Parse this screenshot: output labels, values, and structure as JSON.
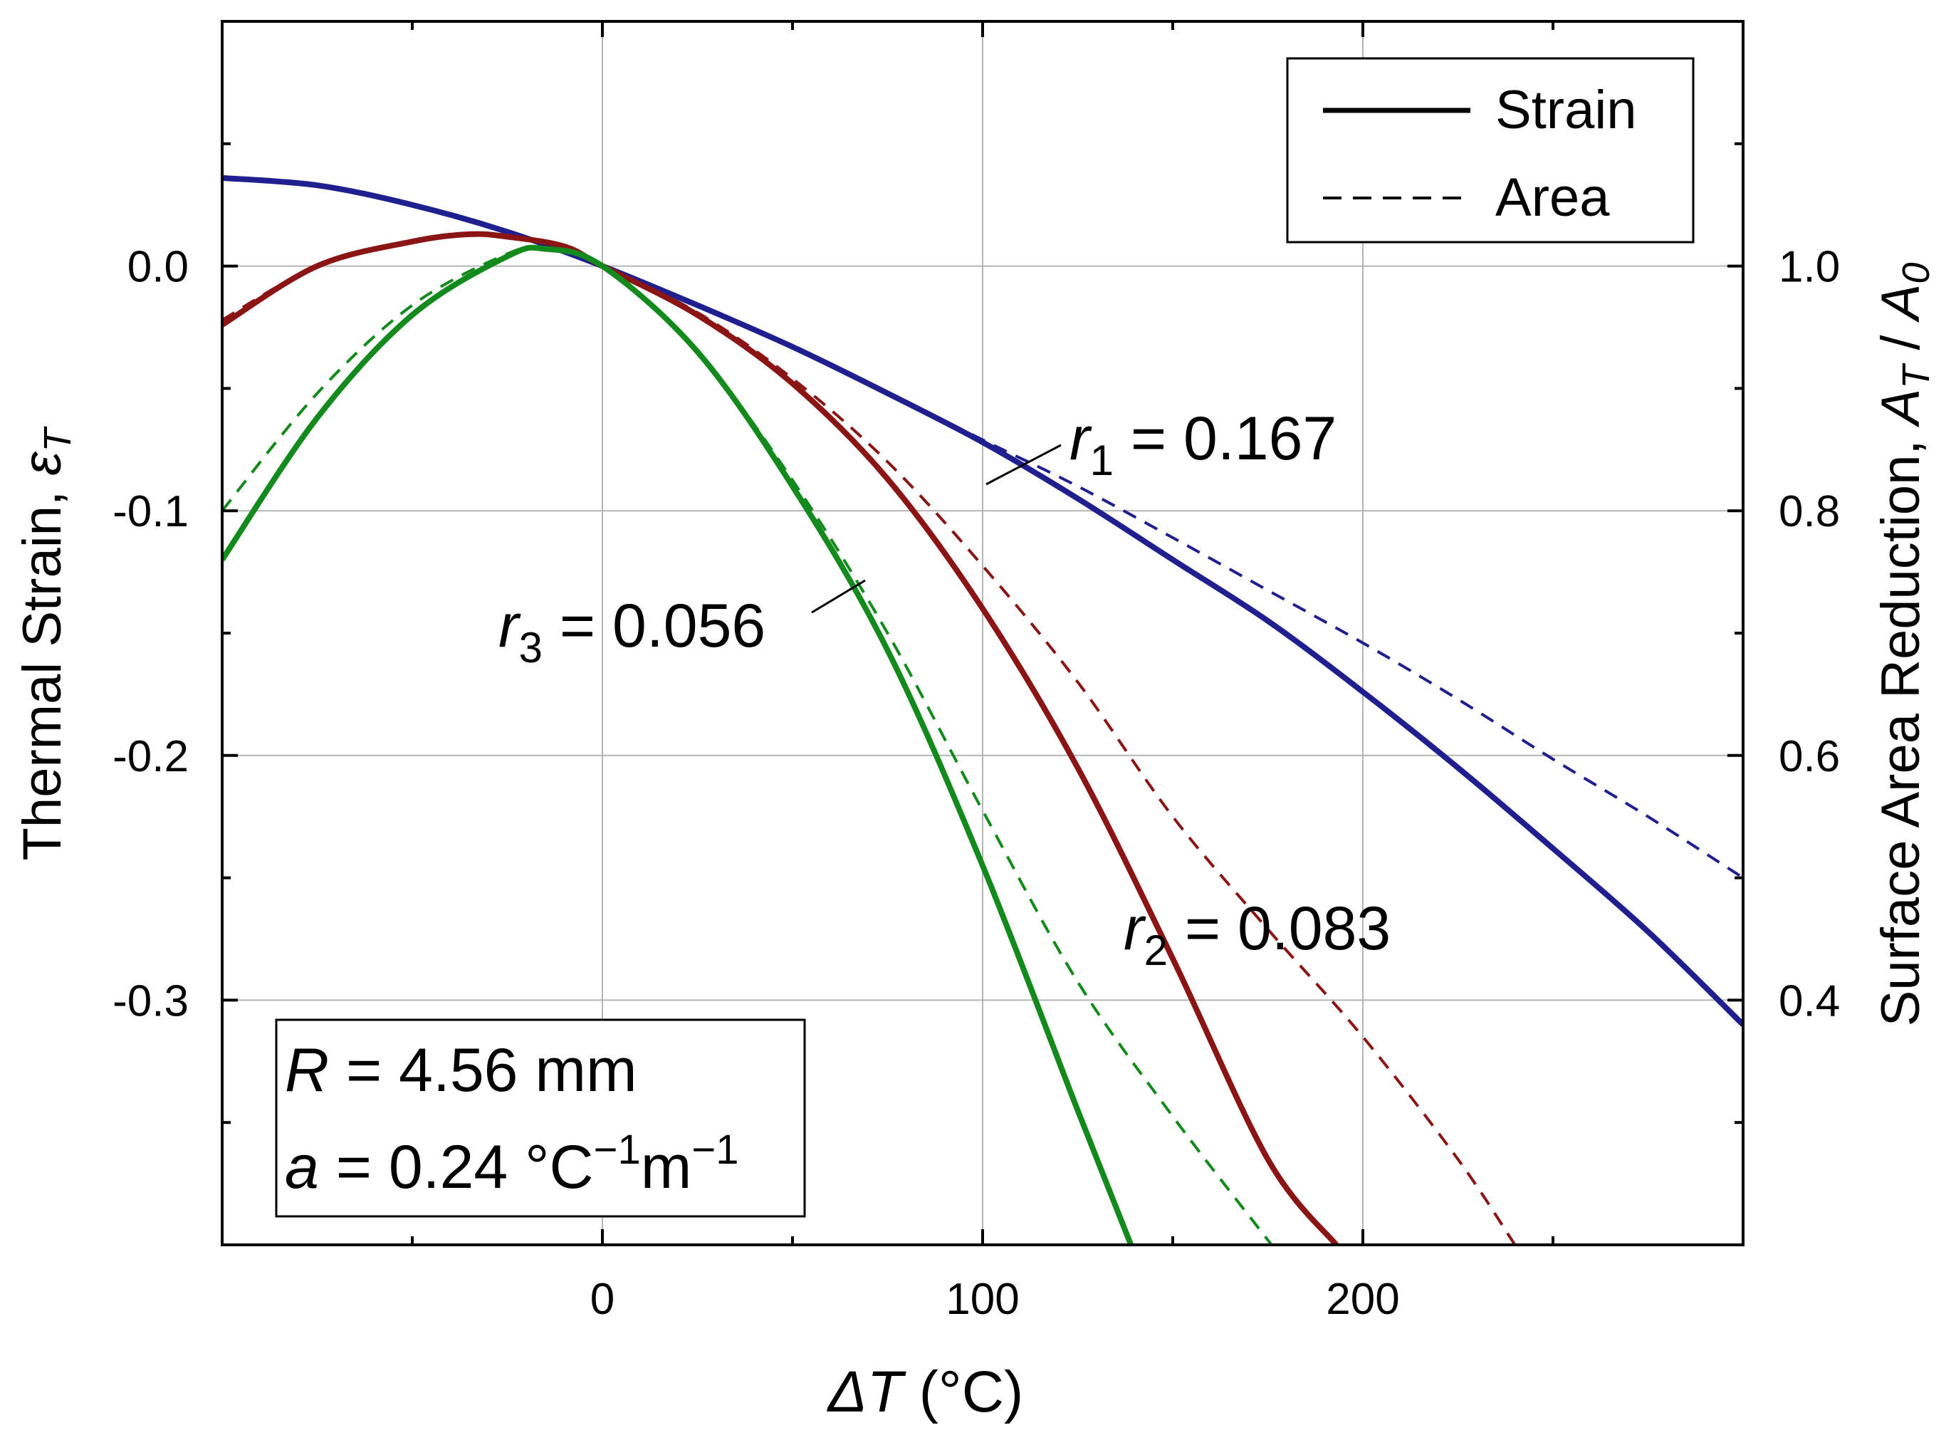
{
  "chart_data": {
    "type": "line",
    "xlabel_symbol": "ΔT",
    "xlabel_unit": " (°C)",
    "ylabel_left_text": "Thermal Strain, ",
    "ylabel_left_symbol": "ε",
    "ylabel_left_sub": "T",
    "ylabel_right_text": "Surface Area Reduction, ",
    "ylabel_right_A": "A",
    "ylabel_right_T": "T",
    "ylabel_right_slash": " / ",
    "ylabel_right_A0": "A",
    "ylabel_right_0": "0",
    "xlim": [
      -100,
      300
    ],
    "ylim_left": [
      -0.4,
      0.1
    ],
    "ylim_right": [
      0.2,
      1.2
    ],
    "x_ticks": [
      {
        "value": 0,
        "label": "0"
      },
      {
        "value": 100,
        "label": "100"
      },
      {
        "value": 200,
        "label": "200"
      }
    ],
    "y_ticks_left": [
      {
        "value": 0.0,
        "label": "0.0"
      },
      {
        "value": -0.1,
        "label": "-0.1"
      },
      {
        "value": -0.2,
        "label": "-0.2"
      },
      {
        "value": -0.3,
        "label": "-0.3"
      }
    ],
    "y_ticks_right": [
      {
        "value": 1.0,
        "label": "1.0"
      },
      {
        "value": 0.8,
        "label": "0.8"
      },
      {
        "value": 0.6,
        "label": "0.6"
      },
      {
        "value": 0.4,
        "label": "0.4"
      }
    ],
    "grid": true,
    "legend": {
      "position": "top-right",
      "entries": [
        {
          "label": "Strain",
          "style": "solid"
        },
        {
          "label": "Area",
          "style": "dashed"
        }
      ]
    },
    "series": [
      {
        "name": "r1 strain",
        "axis": "left",
        "style": "solid",
        "color": "#1f1f8f",
        "x": [
          -100,
          -75,
          -50,
          -25,
          0,
          25,
          50,
          75,
          100,
          125,
          150,
          175,
          200,
          225,
          250,
          275,
          300
        ],
        "y": [
          0.036,
          0.033,
          0.025,
          0.014,
          0.0,
          -0.016,
          -0.033,
          -0.052,
          -0.072,
          -0.095,
          -0.12,
          -0.145,
          -0.174,
          -0.205,
          -0.238,
          -0.272,
          -0.31
        ]
      },
      {
        "name": "r1 area",
        "axis": "right",
        "style": "dashed",
        "color": "#1f1f8f",
        "x": [
          -100,
          -75,
          -50,
          -25,
          0,
          25,
          50,
          75,
          100,
          125,
          150,
          175,
          200,
          225,
          250,
          275,
          300
        ],
        "y": [
          1.073,
          1.066,
          1.051,
          1.028,
          1.0,
          0.968,
          0.934,
          0.897,
          0.858,
          0.82,
          0.778,
          0.735,
          0.692,
          0.646,
          0.597,
          0.55,
          0.5
        ]
      },
      {
        "name": "r2 strain",
        "axis": "left",
        "style": "solid",
        "color": "#8b1414",
        "x": [
          -100,
          -75,
          -50,
          -35,
          -25,
          -10,
          0,
          25,
          50,
          75,
          100,
          125,
          150,
          175,
          193
        ],
        "y": [
          -0.024,
          0.0,
          0.01,
          0.013,
          0.012,
          0.008,
          0.0,
          -0.02,
          -0.048,
          -0.087,
          -0.14,
          -0.205,
          -0.283,
          -0.365,
          -0.4
        ]
      },
      {
        "name": "r2 area",
        "axis": "right",
        "style": "dashed",
        "color": "#8b1414",
        "x": [
          -100,
          -75,
          -50,
          -35,
          -25,
          -10,
          0,
          25,
          50,
          75,
          100,
          125,
          150,
          175,
          200,
          225,
          240
        ],
        "y": [
          0.956,
          1.0,
          1.02,
          1.026,
          1.024,
          1.016,
          1.0,
          0.962,
          0.908,
          0.84,
          0.755,
          0.66,
          0.55,
          0.458,
          0.37,
          0.27,
          0.2
        ]
      },
      {
        "name": "r3 strain",
        "axis": "left",
        "style": "solid",
        "color": "#128a1c",
        "x": [
          -100,
          -75,
          -50,
          -25,
          -15,
          0,
          25,
          50,
          75,
          100,
          125,
          139
        ],
        "y": [
          -0.12,
          -0.062,
          -0.02,
          0.004,
          0.007,
          0.0,
          -0.035,
          -0.09,
          -0.157,
          -0.245,
          -0.345,
          -0.4
        ]
      },
      {
        "name": "r3 area",
        "axis": "right",
        "style": "dashed",
        "color": "#128a1c",
        "x": [
          -100,
          -75,
          -50,
          -25,
          -15,
          0,
          25,
          50,
          75,
          100,
          125,
          150,
          176
        ],
        "y": [
          0.8,
          0.896,
          0.968,
          1.01,
          1.014,
          1.0,
          0.93,
          0.825,
          0.7,
          0.555,
          0.415,
          0.305,
          0.2
        ]
      }
    ],
    "annotations": {
      "r1": {
        "sym": "r",
        "sub": "1",
        "text": " = 0.167"
      },
      "r2": {
        "sym": "r",
        "sub": "2",
        "text": " = 0.083"
      },
      "r3": {
        "sym": "r",
        "sub": "3",
        "text": " = 0.056"
      }
    },
    "info_box": {
      "line1_sym": "R",
      "line1_text": " = 4.56 mm",
      "line2_sym": "a",
      "line2_text": " = 0.24 °C",
      "line2_exp1": "−1",
      "line2_unit": "m",
      "line2_exp2": "−1"
    }
  }
}
